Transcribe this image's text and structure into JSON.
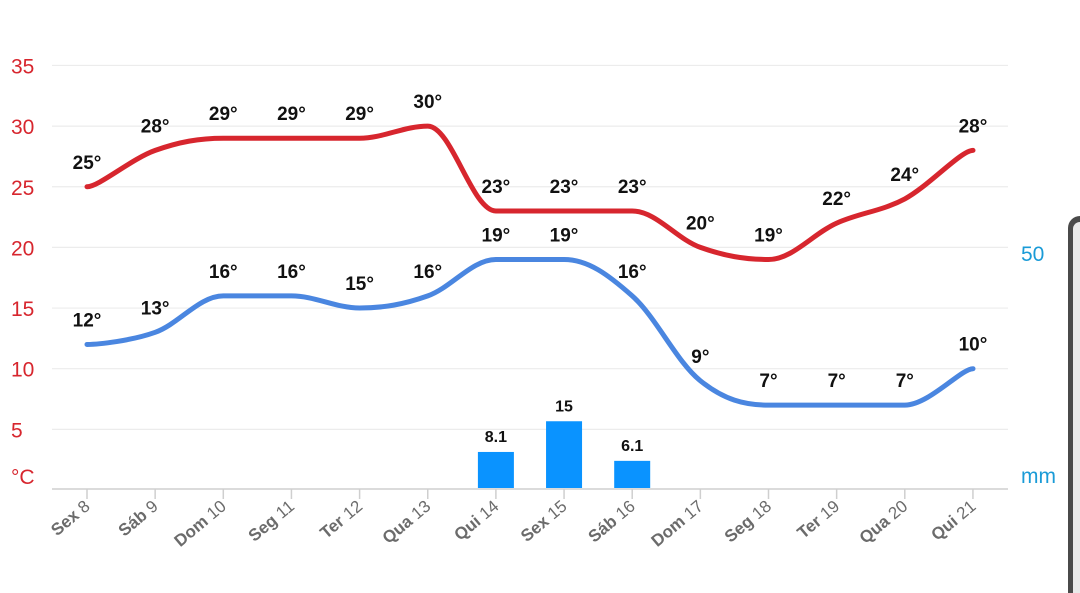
{
  "chart_data": {
    "type": "line",
    "categories": [
      "Sex 8",
      "Sáb 9",
      "Dom 10",
      "Seg 11",
      "Ter 12",
      "Qua 13",
      "Qui 14",
      "Sex 15",
      "Sáb 16",
      "Dom 17",
      "Seg 18",
      "Ter 19",
      "Qua 20",
      "Qui 21"
    ],
    "category_weekday": [
      "Sex",
      "Sáb",
      "Dom",
      "Seg",
      "Ter",
      "Qua",
      "Qui",
      "Sex",
      "Sáb",
      "Dom",
      "Seg",
      "Ter",
      "Qua",
      "Qui"
    ],
    "category_day": [
      "8",
      "9",
      "10",
      "11",
      "12",
      "13",
      "14",
      "15",
      "16",
      "17",
      "18",
      "19",
      "20",
      "21"
    ],
    "y_axis": {
      "unit": "°C",
      "ticks": [
        5,
        10,
        15,
        20,
        25,
        30,
        35
      ],
      "ylim": [
        0,
        35
      ]
    },
    "y2_axis": {
      "unit": "mm",
      "ticks": [
        50
      ]
    },
    "series": [
      {
        "key": "max",
        "values": [
          25,
          28,
          29,
          29,
          29,
          30,
          23,
          23,
          23,
          20,
          19,
          22,
          24,
          28
        ],
        "labels": [
          "25°",
          "28°",
          "29°",
          "29°",
          "29°",
          "30°",
          "23°",
          "23°",
          "23°",
          "20°",
          "19°",
          "22°",
          "24°",
          "28°"
        ],
        "color": "#d7262e"
      },
      {
        "key": "min",
        "values": [
          12,
          13,
          16,
          16,
          15,
          16,
          19,
          19,
          16,
          9,
          7,
          7,
          7,
          10
        ],
        "labels": [
          "12°",
          "13°",
          "16°",
          "16°",
          "15°",
          "16°",
          "19°",
          "19°",
          "16°",
          "9°",
          "7°",
          "7°",
          "7°",
          "10°"
        ],
        "color": "#4a86e0"
      }
    ],
    "precipitation": {
      "indices": [
        6,
        7,
        8
      ],
      "values": [
        8.1,
        15,
        6.1
      ],
      "labels": [
        "8.1",
        "15",
        "6.1"
      ],
      "color": "#0a93ff"
    }
  }
}
